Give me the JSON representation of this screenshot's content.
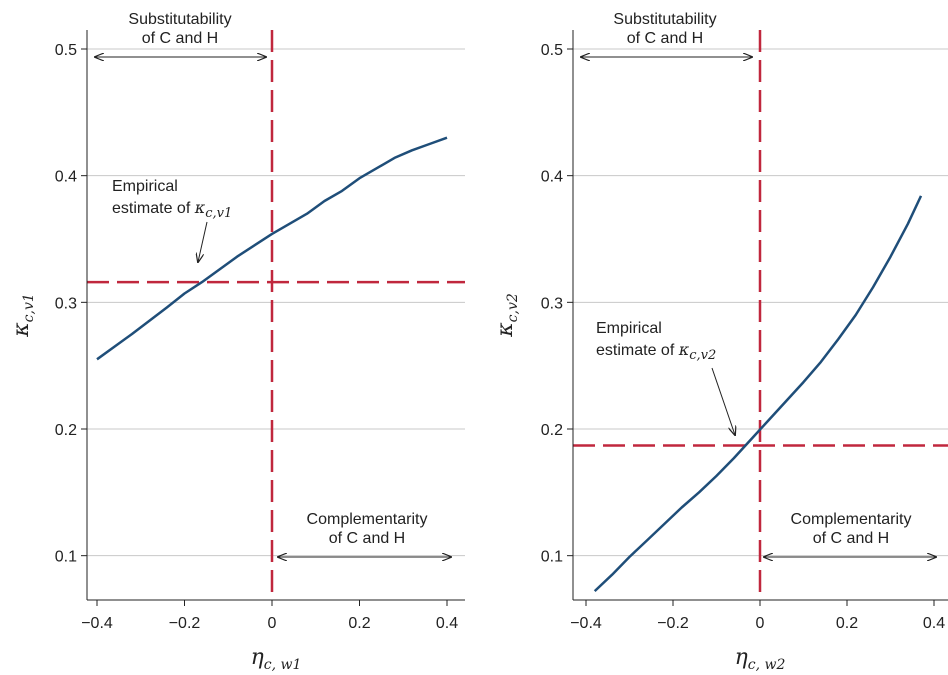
{
  "chart_data": [
    {
      "type": "line",
      "xlabel": {
        "main": "η",
        "sub": "c, w1"
      },
      "ylabel": {
        "main": "κ",
        "sub": "c,v1"
      },
      "xlim": [
        -0.43,
        0.43
      ],
      "ylim": [
        0.065,
        0.515
      ],
      "xticks": [
        -0.4,
        -0.2,
        0,
        0.2,
        0.4
      ],
      "xtick_labels": [
        "−0.4",
        "−0.2",
        "0",
        "0.2",
        "0.4"
      ],
      "yticks": [
        0.1,
        0.2,
        0.3,
        0.4,
        0.5
      ],
      "ytick_labels": [
        "0.1",
        "0.2",
        "0.3",
        "0.4",
        "0.5"
      ],
      "grid": "horizontal",
      "series": [
        {
          "color": "#1f4e79",
          "x": [
            -0.4,
            -0.32,
            -0.24,
            -0.2,
            -0.16,
            -0.08,
            0.0,
            0.08,
            0.12,
            0.16,
            0.2,
            0.24,
            0.28,
            0.32,
            0.36,
            0.4
          ],
          "y": [
            0.255,
            0.275,
            0.296,
            0.307,
            0.316,
            0.336,
            0.354,
            0.37,
            0.38,
            0.388,
            0.398,
            0.406,
            0.414,
            0.42,
            0.425,
            0.43
          ]
        }
      ],
      "reference_lines": {
        "color": "#c0273d",
        "vertical_x": 0,
        "horizontal_y": 0.316
      },
      "annotations": {
        "top_line1": "Substitutability",
        "top_line2": "of C and H",
        "bottom_line1": "Complementarity",
        "bottom_line2": "of C and H",
        "estimate_line1": "Empirical",
        "estimate_line2": "estimate of",
        "estimate_math": "κ",
        "estimate_sub": "c,v1"
      }
    },
    {
      "type": "line",
      "xlabel": {
        "main": "η",
        "sub": "c, w2"
      },
      "ylabel": {
        "main": "κ",
        "sub": "c,v2"
      },
      "xlim": [
        -0.43,
        0.43
      ],
      "ylim": [
        0.065,
        0.515
      ],
      "xticks": [
        -0.4,
        -0.2,
        0,
        0.2,
        0.4
      ],
      "xtick_labels": [
        "−0.4",
        "−0.2",
        "0",
        "0.2",
        "0.4"
      ],
      "yticks": [
        0.1,
        0.2,
        0.3,
        0.4,
        0.5
      ],
      "ytick_labels": [
        "0.1",
        "0.2",
        "0.3",
        "0.4",
        "0.5"
      ],
      "grid": "horizontal",
      "series": [
        {
          "color": "#1f4e79",
          "x": [
            -0.38,
            -0.34,
            -0.3,
            -0.26,
            -0.22,
            -0.18,
            -0.14,
            -0.1,
            -0.06,
            -0.02,
            0.02,
            0.06,
            0.1,
            0.14,
            0.18,
            0.22,
            0.26,
            0.3,
            0.34,
            0.37
          ],
          "y": [
            0.072,
            0.085,
            0.099,
            0.112,
            0.125,
            0.138,
            0.15,
            0.163,
            0.177,
            0.192,
            0.207,
            0.222,
            0.237,
            0.253,
            0.271,
            0.29,
            0.312,
            0.336,
            0.362,
            0.384
          ]
        }
      ],
      "reference_lines": {
        "color": "#c0273d",
        "vertical_x": 0,
        "horizontal_y": 0.187
      },
      "annotations": {
        "top_line1": "Substitutability",
        "top_line2": "of C and H",
        "bottom_line1": "Complementarity",
        "bottom_line2": "of C and H",
        "estimate_line1": "Empirical",
        "estimate_line2": "estimate of",
        "estimate_math": "κ",
        "estimate_sub": "c,v2"
      }
    }
  ]
}
